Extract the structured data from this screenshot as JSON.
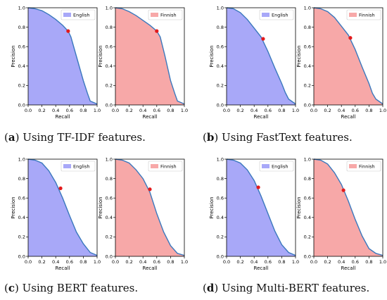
{
  "panels": [
    {
      "caption": {
        "letter": "a",
        "text": "Using TF-IDF features."
      },
      "charts": [
        {
          "type": "area",
          "series_name": "English",
          "color": "#a8a8f8",
          "recall": [
            0,
            0.1,
            0.2,
            0.3,
            0.4,
            0.5,
            0.58,
            0.62,
            0.7,
            0.8,
            0.86,
            0.9,
            1.0
          ],
          "precision": [
            1,
            0.99,
            0.97,
            0.93,
            0.88,
            0.82,
            0.76,
            0.7,
            0.5,
            0.25,
            0.12,
            0.04,
            0.01
          ],
          "op_point": {
            "recall": 0.58,
            "precision": 0.76
          }
        },
        {
          "type": "area",
          "series_name": "Finnish",
          "color": "#f7a8a8",
          "recall": [
            0,
            0.1,
            0.2,
            0.3,
            0.4,
            0.5,
            0.6,
            0.65,
            0.72,
            0.8,
            0.86,
            0.9,
            1.0
          ],
          "precision": [
            1,
            0.99,
            0.96,
            0.92,
            0.87,
            0.82,
            0.76,
            0.7,
            0.5,
            0.25,
            0.12,
            0.04,
            0.01
          ],
          "op_point": {
            "recall": 0.6,
            "precision": 0.76
          }
        }
      ]
    },
    {
      "caption": {
        "letter": "b",
        "text": "Using FastText features."
      },
      "charts": [
        {
          "type": "area",
          "series_name": "English",
          "color": "#a8a8f8",
          "recall": [
            0,
            0.1,
            0.2,
            0.3,
            0.4,
            0.5,
            0.6,
            0.7,
            0.8,
            0.85,
            0.9,
            1.0
          ],
          "precision": [
            1,
            0.99,
            0.95,
            0.88,
            0.79,
            0.7,
            0.55,
            0.38,
            0.22,
            0.13,
            0.06,
            0.01
          ],
          "op_point": {
            "recall": 0.53,
            "precision": 0.68
          }
        },
        {
          "type": "area",
          "series_name": "Finnish",
          "color": "#f7a8a8",
          "recall": [
            0,
            0.1,
            0.2,
            0.3,
            0.4,
            0.5,
            0.6,
            0.7,
            0.8,
            0.85,
            0.9,
            1.0
          ],
          "precision": [
            1,
            0.99,
            0.96,
            0.9,
            0.81,
            0.72,
            0.57,
            0.39,
            0.22,
            0.12,
            0.06,
            0.01
          ],
          "op_point": {
            "recall": 0.53,
            "precision": 0.69
          }
        }
      ]
    },
    {
      "caption": {
        "letter": "c",
        "text": "Using BERT features."
      },
      "charts": [
        {
          "type": "area",
          "series_name": "English",
          "color": "#a8a8f8",
          "recall": [
            0,
            0.1,
            0.2,
            0.3,
            0.4,
            0.5,
            0.6,
            0.7,
            0.8,
            0.9,
            1.0
          ],
          "precision": [
            1,
            0.99,
            0.96,
            0.88,
            0.76,
            0.6,
            0.42,
            0.25,
            0.13,
            0.04,
            0.01
          ],
          "op_point": {
            "recall": 0.47,
            "precision": 0.7
          }
        },
        {
          "type": "area",
          "series_name": "Finnish",
          "color": "#f7a8a8",
          "recall": [
            0,
            0.1,
            0.2,
            0.3,
            0.4,
            0.5,
            0.6,
            0.7,
            0.8,
            0.9,
            1.0
          ],
          "precision": [
            1,
            0.99,
            0.96,
            0.89,
            0.8,
            0.66,
            0.44,
            0.25,
            0.11,
            0.03,
            0.01
          ],
          "op_point": {
            "recall": 0.5,
            "precision": 0.69
          }
        }
      ]
    },
    {
      "caption": {
        "letter": "d",
        "text": "Using Multi-BERT features."
      },
      "charts": [
        {
          "type": "area",
          "series_name": "English",
          "color": "#a8a8f8",
          "recall": [
            0,
            0.1,
            0.2,
            0.3,
            0.4,
            0.5,
            0.6,
            0.7,
            0.8,
            0.9,
            1.0
          ],
          "precision": [
            1,
            0.99,
            0.96,
            0.89,
            0.78,
            0.62,
            0.44,
            0.26,
            0.12,
            0.04,
            0.01
          ],
          "op_point": {
            "recall": 0.46,
            "precision": 0.71
          }
        },
        {
          "type": "area",
          "series_name": "Finnish",
          "color": "#f7a8a8",
          "recall": [
            0,
            0.1,
            0.2,
            0.3,
            0.4,
            0.5,
            0.6,
            0.7,
            0.8,
            0.9,
            1.0
          ],
          "precision": [
            1,
            0.99,
            0.95,
            0.86,
            0.74,
            0.57,
            0.38,
            0.21,
            0.08,
            0.03,
            0.01
          ],
          "op_point": {
            "recall": 0.43,
            "precision": 0.68
          }
        }
      ]
    }
  ],
  "chart_data": {
    "type": "area",
    "xlabel": "Recall",
    "ylabel": "Precision",
    "xlim": [
      0,
      1
    ],
    "ylim": [
      0,
      1
    ],
    "xticks": [
      "0.0",
      "0.2",
      "0.4",
      "0.6",
      "0.8",
      "1.0"
    ],
    "yticks": [
      "0.0",
      "0.2",
      "0.4",
      "0.6",
      "0.8",
      "1.0"
    ],
    "legend_position": "top-right",
    "grid": false,
    "curve_color": "#3a78bd",
    "marker_color": "#e31a1c"
  }
}
